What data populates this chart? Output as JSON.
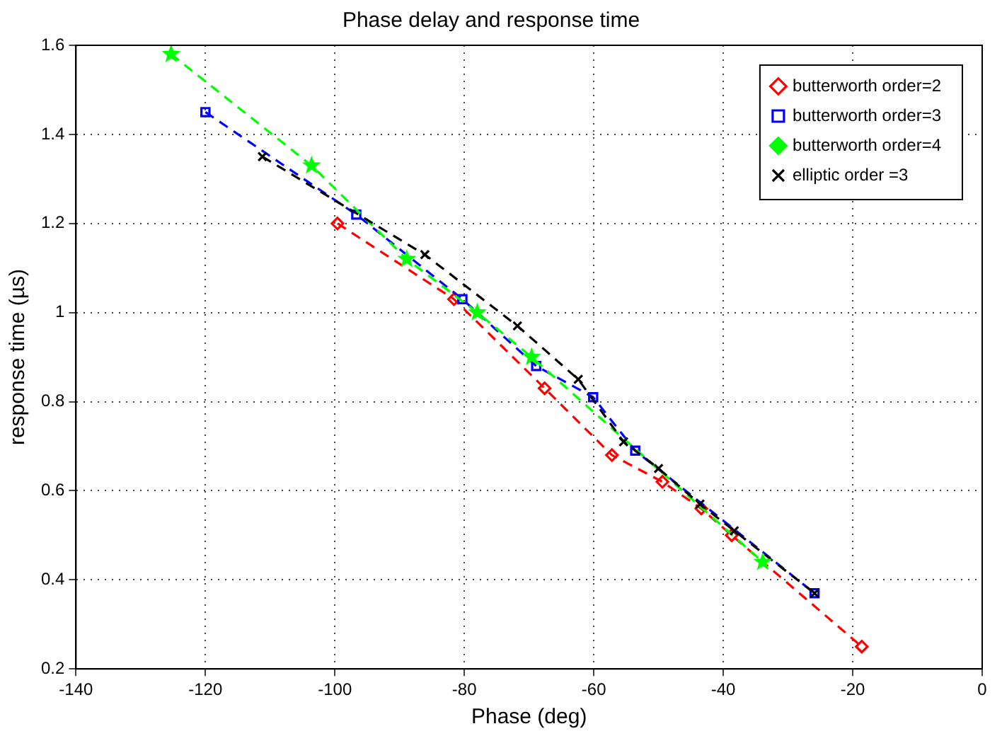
{
  "chart_data": {
    "type": "line",
    "title": "Phase delay and response time",
    "xlabel": "Phase (deg)",
    "ylabel": "response time (µs)",
    "xlim": [
      -140,
      0
    ],
    "xticks": [
      -140,
      -120,
      -100,
      -80,
      -60,
      -40,
      -20,
      0
    ],
    "ylim": [
      0.2,
      1.6
    ],
    "yticks": [
      0.2,
      0.4,
      0.6,
      0.8,
      1,
      1.2,
      1.4,
      1.6
    ],
    "grid": true,
    "legend": "top right",
    "line_style": "dashed",
    "series": [
      {
        "name": "butterworth order=2",
        "color": "#ff0000",
        "marker": "diamond",
        "x": [
          -99.6,
          -81.6,
          -67.6,
          -57.2,
          -49.4,
          -43.4,
          -38.7,
          -18.6
        ],
        "values": [
          1.2,
          1.03,
          0.83,
          0.68,
          0.62,
          0.56,
          0.5,
          0.25
        ]
      },
      {
        "name": "butterworth order=3",
        "color": "#0000ff",
        "marker": "square",
        "x": [
          -120,
          -96.7,
          -80.3,
          -68.9,
          -60.1,
          -53.6,
          -25.9
        ],
        "values": [
          1.45,
          1.22,
          1.03,
          0.88,
          0.81,
          0.69,
          0.37
        ]
      },
      {
        "name": "butterworth order=4",
        "color": "#00ff00",
        "marker": "star",
        "x": [
          -125.3,
          -103.6,
          -88.9,
          -78,
          -69.6,
          -33.9
        ],
        "values": [
          1.58,
          1.33,
          1.12,
          1.0,
          0.9,
          0.44
        ]
      },
      {
        "name": "elliptic order =3",
        "color": "#000000",
        "marker": "cross",
        "x": [
          -111.2,
          -86.1,
          -71.8,
          -62.4,
          -55.4,
          -50,
          -43.6,
          -38.3,
          -25.9
        ],
        "values": [
          1.35,
          1.13,
          0.97,
          0.85,
          0.71,
          0.65,
          0.57,
          0.51,
          0.37
        ]
      }
    ]
  }
}
